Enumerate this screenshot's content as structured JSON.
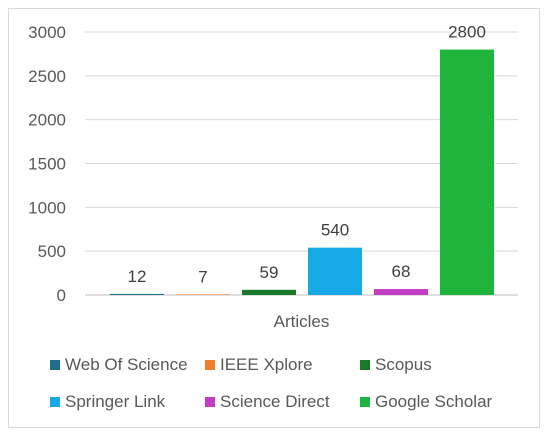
{
  "chart_data": {
    "type": "bar",
    "categories": [
      "Articles"
    ],
    "series": [
      {
        "name": "Web Of Science",
        "values": [
          12
        ],
        "color": "#1f6f8b"
      },
      {
        "name": "IEEE Xplore",
        "values": [
          7
        ],
        "color": "#f07f2a"
      },
      {
        "name": "Scopus",
        "values": [
          59
        ],
        "color": "#1a7a2c"
      },
      {
        "name": "Springer Link",
        "values": [
          540
        ],
        "color": "#17a8e6"
      },
      {
        "name": "Science Direct",
        "values": [
          68
        ],
        "color": "#c23dc4"
      },
      {
        "name": "Google Scholar",
        "values": [
          2800
        ],
        "color": "#1fb53c"
      }
    ],
    "ylim": [
      0,
      3000
    ],
    "yticks": [
      0,
      500,
      1000,
      1500,
      2000,
      2500,
      3000
    ],
    "grid": true,
    "legend_position": "bottom",
    "title": "",
    "xlabel": "",
    "ylabel": ""
  }
}
